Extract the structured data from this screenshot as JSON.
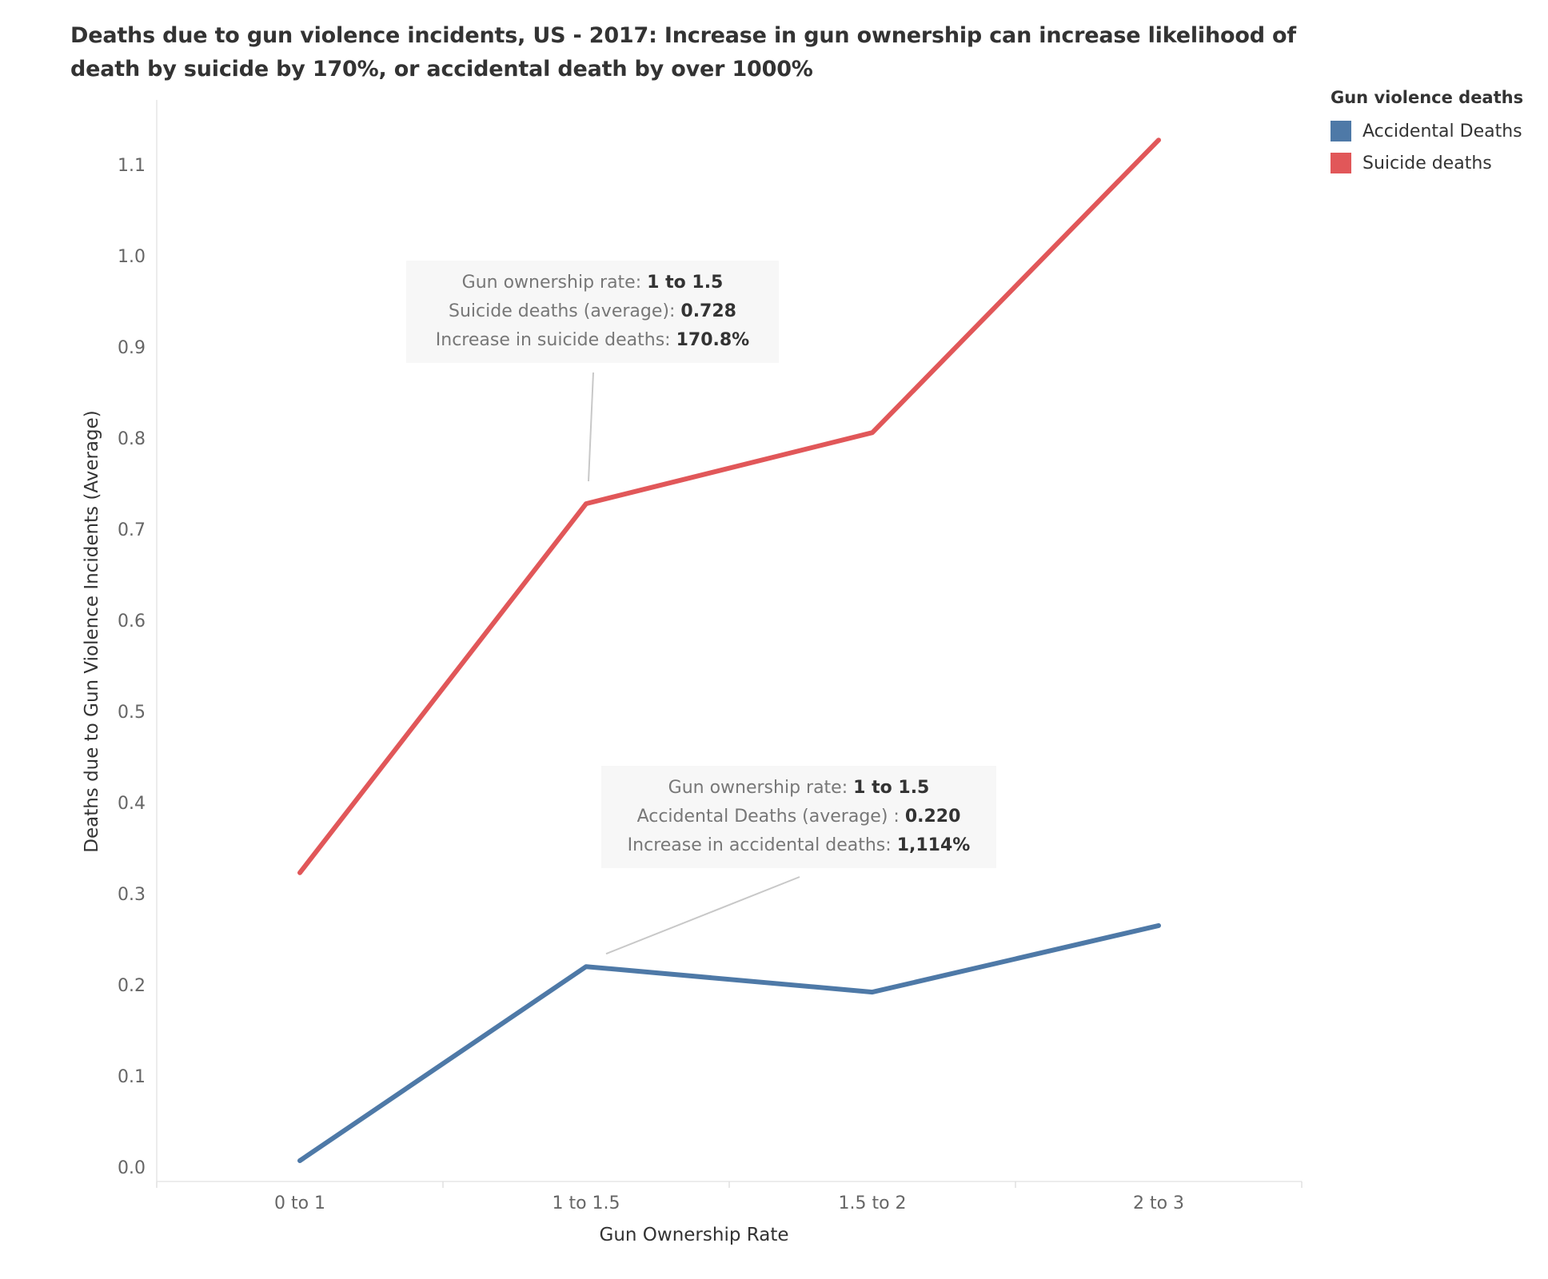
{
  "title": "Deaths due to gun violence incidents, US - 2017: Increase in gun ownership  can increase likelihood of death by suicide by 170%, or accidental death by over 1000%",
  "legend": {
    "title": "Gun violence deaths",
    "items": [
      {
        "label": "Accidental Deaths",
        "color": "#4e79a7"
      },
      {
        "label": "Suicide deaths",
        "color": "#e15759"
      }
    ]
  },
  "annotations": {
    "suicide": {
      "rate_label": "Gun ownership rate:",
      "rate_value": "1 to 1.5",
      "avg_label": "Suicide deaths (average):",
      "avg_value": "0.728",
      "inc_label": "Increase in suicide deaths:",
      "inc_value": "170.8%"
    },
    "accidental": {
      "rate_label": "Gun ownership rate:",
      "rate_value": "1 to 1.5",
      "avg_label": "Accidental Deaths (average) :",
      "avg_value": "0.220",
      "inc_label": "Increase in accidental deaths:",
      "inc_value": "1,114%"
    }
  },
  "chart_data": {
    "type": "line",
    "title": "Deaths due to gun violence incidents, US - 2017: Increase in gun ownership  can increase likelihood of death by suicide by 170%, or accidental death by over 1000%",
    "xlabel": "Gun Ownership Rate",
    "ylabel": "Deaths due to Gun Violence Incidents (Average)",
    "categories": [
      "0 to 1",
      "1 to 1.5",
      "1.5 to 2",
      "2 to 3"
    ],
    "ylim": [
      0,
      1.1
    ],
    "yticks": [
      "0.0",
      "0.1",
      "0.2",
      "0.3",
      "0.4",
      "0.5",
      "0.6",
      "0.7",
      "0.8",
      "0.9",
      "1.0",
      "1.1"
    ],
    "grid": false,
    "legend_position": "top-right",
    "series": [
      {
        "name": "Accidental Deaths",
        "color": "#4e79a7",
        "values": [
          0.007,
          0.22,
          0.192,
          0.265
        ]
      },
      {
        "name": "Suicide deaths",
        "color": "#e15759",
        "values": [
          0.323,
          0.728,
          0.806,
          1.127
        ]
      }
    ]
  }
}
